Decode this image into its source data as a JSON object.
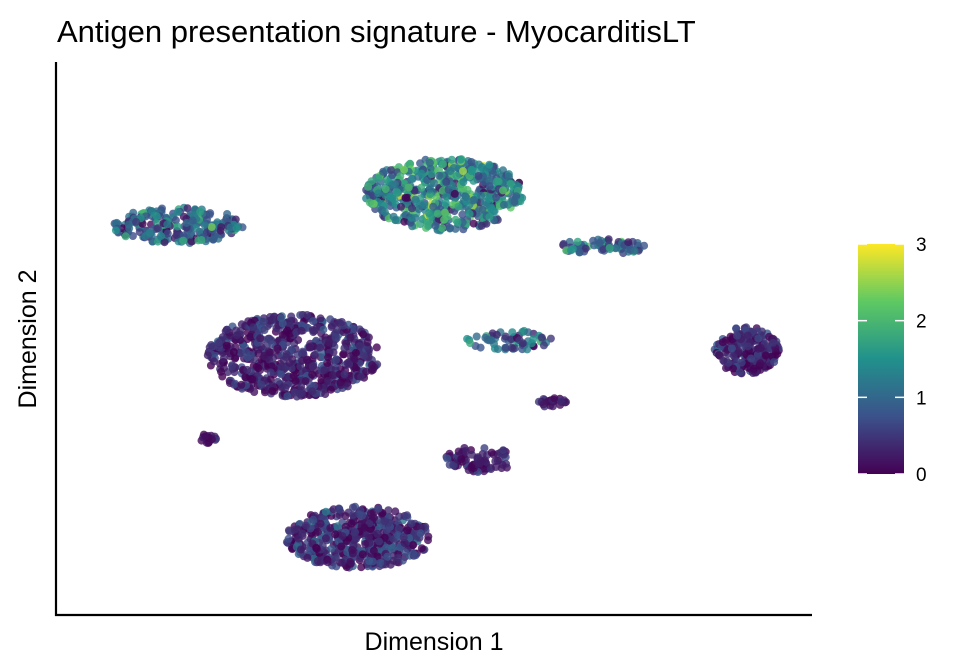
{
  "chart_data": {
    "type": "scatter",
    "title": "Antigen presentation signature - MyocarditisLT",
    "xlabel": "Dimension 1",
    "ylabel": "Dimension 2",
    "x_ticks_shown": false,
    "y_ticks_shown": false,
    "grid": false,
    "xlim": [
      0,
      100
    ],
    "ylim": [
      0,
      100
    ],
    "colorbar": {
      "ticks": [
        0,
        1,
        2,
        3
      ],
      "tick_labels": [
        "0",
        "1",
        "2",
        "3"
      ],
      "range": [
        0,
        3
      ],
      "colormap": "viridis",
      "legend_position": "right"
    },
    "point_color_scale": [
      "#440154",
      "#3b528b",
      "#21918c",
      "#5ec962",
      "#fde725"
    ],
    "clusters": [
      {
        "cx": 31,
        "cy": 47,
        "rx": 12,
        "ry": 8,
        "n": 700,
        "mean": 0.3,
        "sd": 0.3
      },
      {
        "cx": 40,
        "cy": 12,
        "rx": 10,
        "ry": 6,
        "n": 500,
        "mean": 0.35,
        "sd": 0.35
      },
      {
        "cx": 52,
        "cy": 78,
        "rx": 11,
        "ry": 7,
        "n": 600,
        "mean": 1.3,
        "sd": 0.6
      },
      {
        "cx": 15,
        "cy": 72,
        "rx": 9,
        "ry": 3.5,
        "n": 250,
        "mean": 1.0,
        "sd": 0.5
      },
      {
        "cx": 94,
        "cy": 48,
        "rx": 4.5,
        "ry": 4.5,
        "n": 220,
        "mean": 0.3,
        "sd": 0.3
      },
      {
        "cx": 61,
        "cy": 50,
        "rx": 6,
        "ry": 2,
        "n": 60,
        "mean": 0.9,
        "sd": 0.5
      },
      {
        "cx": 74,
        "cy": 68,
        "rx": 6,
        "ry": 1.5,
        "n": 70,
        "mean": 1.0,
        "sd": 0.5
      },
      {
        "cx": 57,
        "cy": 27,
        "rx": 5,
        "ry": 2.5,
        "n": 90,
        "mean": 0.3,
        "sd": 0.2
      },
      {
        "cx": 67,
        "cy": 38,
        "rx": 2,
        "ry": 1,
        "n": 25,
        "mean": 0.2,
        "sd": 0.2
      },
      {
        "cx": 19,
        "cy": 31,
        "rx": 1.5,
        "ry": 1,
        "n": 15,
        "mean": 0.2,
        "sd": 0.2
      }
    ]
  }
}
